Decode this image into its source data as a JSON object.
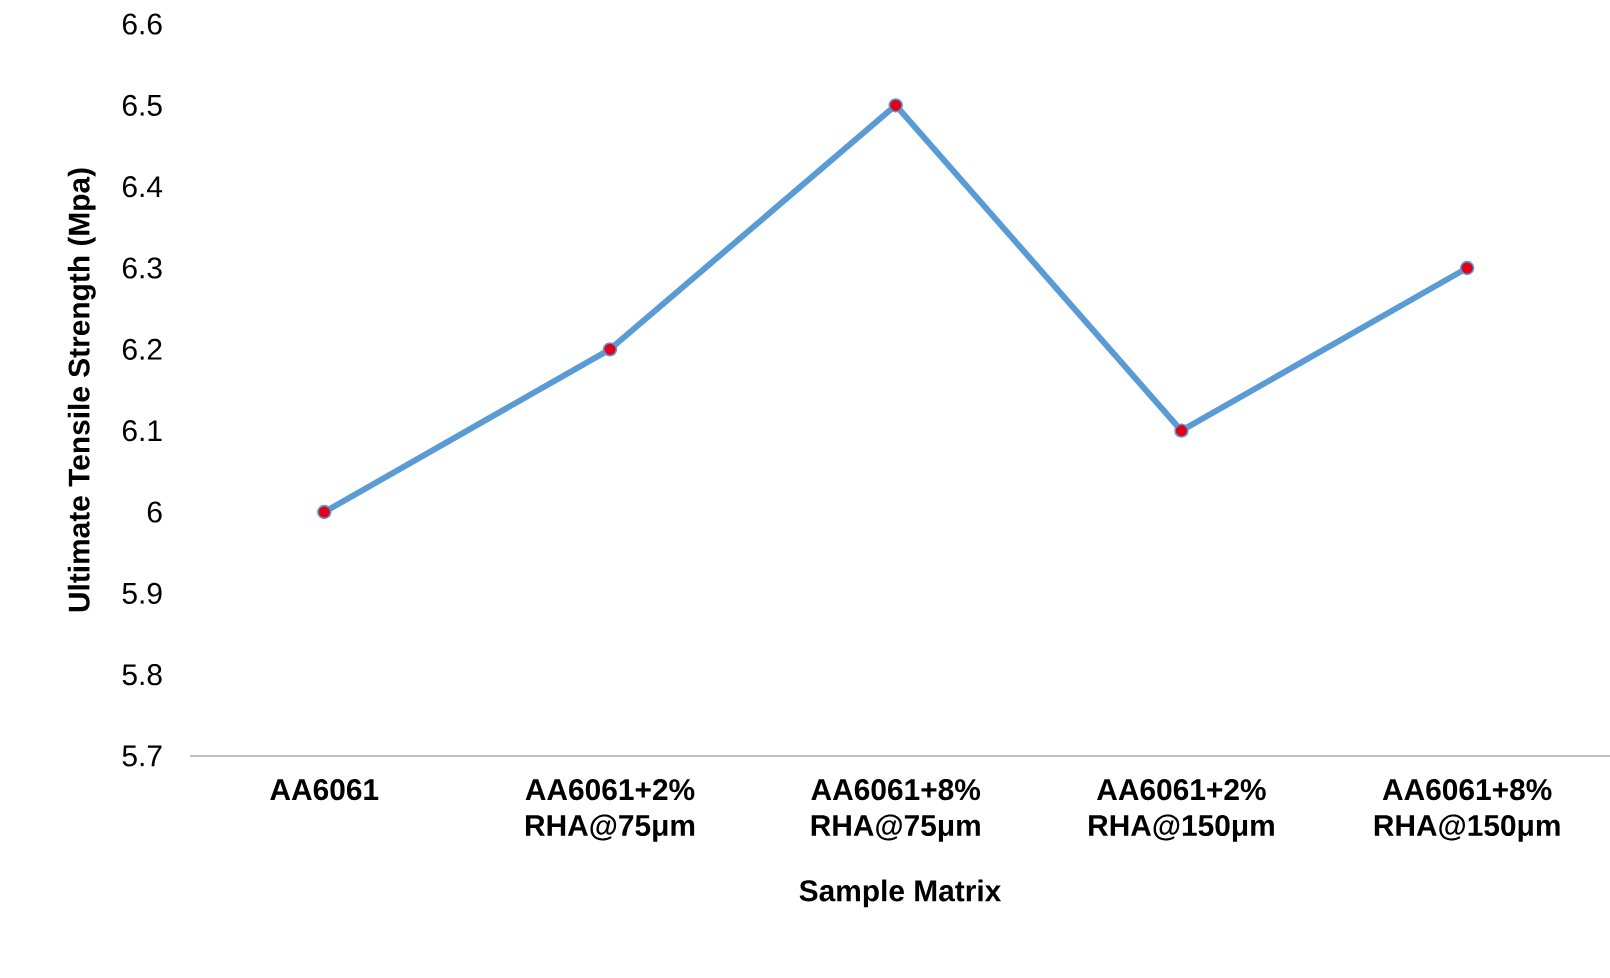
{
  "chart_data": {
    "type": "line",
    "xlabel": "Sample Matrix",
    "ylabel": "Ultimate Tensile Strength (Mpa)",
    "categories": [
      "AA6061",
      "AA6061+2% RHA@75μm",
      "AA6061+8% RHA@75μm",
      "AA6061+2% RHA@150μm",
      "AA6061+8% RHA@150μm"
    ],
    "series": [
      {
        "color": "#5b9bd5",
        "colors": [
          "#e3001b",
          "#e3001b",
          "#e3001b",
          "#e3001b",
          "#e3001b"
        ],
        "values": [
          6.0,
          6.2,
          6.5,
          6.1,
          6.3
        ]
      }
    ],
    "ylim": [
      5.7,
      6.6
    ],
    "yticks": [
      5.7,
      5.8,
      5.9,
      6,
      6.1,
      6.2,
      6.3,
      6.4,
      6.5,
      6.6
    ],
    "grid": false,
    "marker": "circle",
    "line_style": "solid"
  }
}
